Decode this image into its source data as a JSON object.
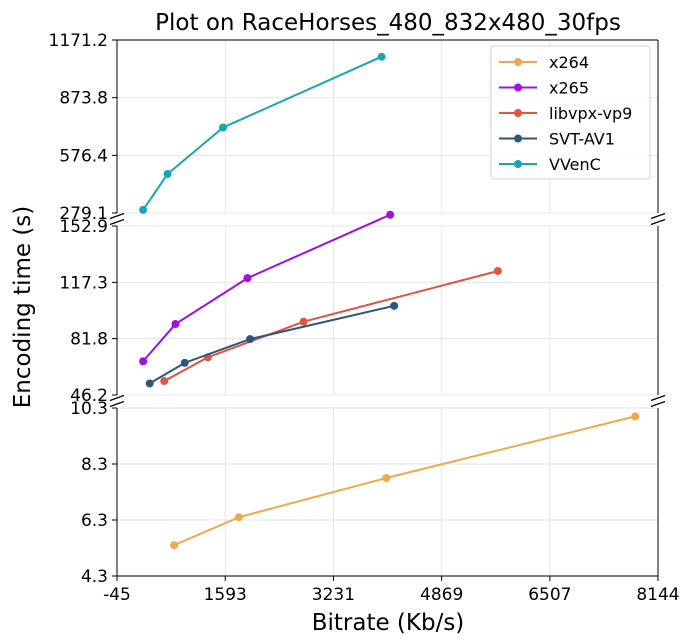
{
  "chart_data": {
    "type": "line",
    "title": "Plot on RaceHorses_480_832x480_30fps",
    "xlabel": "Bitrate (Kb/s)",
    "ylabel": "Encoding time (s)",
    "xlim": [
      -45,
      8144
    ],
    "x_ticks": [
      "-45",
      "1593",
      "3231",
      "4869",
      "6507",
      "8144"
    ],
    "x_tick_values": [
      -45,
      1593,
      3231,
      4869,
      6507,
      8144
    ],
    "grid": true,
    "legend_position": "top-right",
    "broken_axis": true,
    "panels": [
      {
        "ylim": [
          279.1,
          1171.2
        ],
        "y_ticks": [
          "279.1",
          "576.4",
          "873.8",
          "1171.2"
        ],
        "y_tick_values": [
          279.1,
          576.4,
          873.8,
          1171.2
        ]
      },
      {
        "ylim": [
          46.2,
          152.9
        ],
        "y_ticks": [
          "46.2",
          "81.8",
          "117.3",
          "152.9"
        ],
        "y_tick_values": [
          46.2,
          81.8,
          117.3,
          152.9
        ]
      },
      {
        "ylim": [
          4.3,
          10.3
        ],
        "y_ticks": [
          "4.3",
          "6.3",
          "8.3",
          "10.3"
        ],
        "y_tick_values": [
          4.3,
          6.3,
          8.3,
          10.3
        ]
      }
    ],
    "series": [
      {
        "name": "x264",
        "color": "#f0a84c",
        "panel": 2,
        "x": [
          820,
          1800,
          4030,
          7800
        ],
        "y": [
          5.4,
          6.4,
          7.8,
          10.0
        ]
      },
      {
        "name": "x265",
        "color": "#a30ee5",
        "panel": 1,
        "x": [
          350,
          840,
          1930,
          4090
        ],
        "y": [
          67.5,
          91.0,
          120.0,
          160.0
        ]
      },
      {
        "name": "libvpx-vp9",
        "color": "#e05440",
        "panel": 1,
        "x": [
          670,
          1330,
          2780,
          5720
        ],
        "y": [
          55.0,
          70.0,
          92.5,
          124.5
        ]
      },
      {
        "name": "SVT-AV1",
        "color": "#2f5577",
        "panel": 1,
        "x": [
          450,
          980,
          1970,
          4150
        ],
        "y": [
          53.5,
          66.5,
          81.5,
          102.5
        ]
      },
      {
        "name": "VVenC",
        "color": "#15a7b5",
        "panel": 0,
        "x": [
          350,
          720,
          1560,
          3960
        ],
        "y": [
          295,
          480,
          720,
          1085
        ]
      }
    ]
  }
}
